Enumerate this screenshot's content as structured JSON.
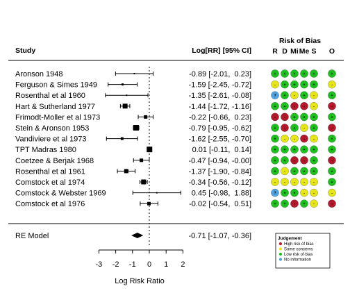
{
  "chart_data": {
    "type": "forest",
    "headers": {
      "study": "Study",
      "effect": "Log[RR] [95% CI]",
      "rob_title": "Risk of Bias",
      "rob_columns": [
        "R",
        "D",
        "Mi",
        "Me",
        "S",
        "O"
      ]
    },
    "studies": [
      {
        "name": "Aronson 1948",
        "est": -0.89,
        "lo": -2.01,
        "hi": 0.23,
        "label": "-0.89 [-2.01,  0.23]",
        "weight": 2,
        "rob": [
          "low",
          "low",
          "low",
          "low",
          "low",
          "low"
        ]
      },
      {
        "name": "Ferguson & Simes 1949",
        "est": -1.59,
        "lo": -2.45,
        "hi": -0.72,
        "label": "-1.59 [-2.45, -0.72]",
        "weight": 3,
        "rob": [
          "some",
          "low",
          "low",
          "low",
          "low",
          "some"
        ]
      },
      {
        "name": "Rosenthal et al 1960",
        "est": -1.35,
        "lo": -2.61,
        "hi": -0.08,
        "label": "-1.35 [-2.61, -0.08]",
        "weight": 2,
        "rob": [
          "none",
          "low",
          "some",
          "low",
          "some",
          "low"
        ]
      },
      {
        "name": "Hart & Sutherland 1977",
        "est": -1.44,
        "lo": -1.72,
        "hi": -1.16,
        "label": "-1.44 [-1.72, -1.16]",
        "weight": 7,
        "rob": [
          "low",
          "low",
          "high",
          "high",
          "some",
          "high"
        ]
      },
      {
        "name": "Frimodt-Moller et al 1973",
        "est": -0.22,
        "lo": -0.66,
        "hi": 0.23,
        "label": "-0.22 [-0.66,  0.23]",
        "weight": 5,
        "rob": [
          "high",
          "high",
          "low",
          "low",
          "low",
          "low"
        ]
      },
      {
        "name": "Stein & Aronson 1953",
        "est": -0.79,
        "lo": -0.95,
        "hi": -0.62,
        "label": "-0.79 [-0.95, -0.62]",
        "weight": 8,
        "rob": [
          "low",
          "high",
          "low",
          "some",
          "low",
          "high"
        ]
      },
      {
        "name": "Vandiviere et al 1973",
        "est": -1.62,
        "lo": -2.55,
        "hi": -0.7,
        "label": "-1.62 [-2.55, -0.70]",
        "weight": 4,
        "rob": [
          "low",
          "some",
          "some",
          "high",
          "some",
          "low"
        ]
      },
      {
        "name": "TPT Madras 1980",
        "est": 0.01,
        "lo": -0.11,
        "hi": 0.14,
        "label": " 0.01 [-0.11,  0.14]",
        "weight": 8,
        "rob": [
          "low",
          "low",
          "low",
          "low",
          "low",
          "low"
        ]
      },
      {
        "name": "Coetzee & Berjak 1968",
        "est": -0.47,
        "lo": -0.94,
        "hi": -0.0,
        "label": "-0.47 [-0.94, -0.00]",
        "weight": 5,
        "rob": [
          "low",
          "low",
          "high",
          "high",
          "low",
          "high"
        ]
      },
      {
        "name": "Rosenthal et al 1961",
        "est": -1.37,
        "lo": -1.9,
        "hi": -0.84,
        "label": "-1.37 [-1.90, -0.84]",
        "weight": 6,
        "rob": [
          "low",
          "some",
          "low",
          "low",
          "low",
          "low"
        ]
      },
      {
        "name": "Comstock et al 1974",
        "est": -0.34,
        "lo": -0.56,
        "hi": -0.12,
        "label": "-0.34 [-0.56, -0.12]",
        "weight": 7,
        "rob": [
          "some",
          "some",
          "some",
          "some",
          "some",
          "low"
        ]
      },
      {
        "name": "Comstock & Webster 1969",
        "est": 0.45,
        "lo": -0.98,
        "hi": 1.88,
        "label": " 0.45 [-0.98,  1.88]",
        "weight": 2,
        "rob": [
          "none",
          "low",
          "low",
          "some",
          "some",
          "some"
        ]
      },
      {
        "name": "Comstock et al 1976",
        "est": -0.02,
        "lo": -0.54,
        "hi": 0.51,
        "label": "-0.02 [-0.54,  0.51]",
        "weight": 5,
        "rob": [
          "low",
          "low",
          "high",
          "low",
          "some",
          "high"
        ]
      }
    ],
    "summary": {
      "name": "RE Model",
      "est": -0.71,
      "lo": -1.07,
      "hi": -0.36,
      "label": "-0.71 [-1.07, -0.36]"
    },
    "x_axis": {
      "label": "Log Risk Ratio",
      "ticks": [
        -3,
        -2,
        -1,
        0,
        1,
        2
      ],
      "range": [
        -3,
        2
      ],
      "reference_line": 0
    },
    "legend": {
      "title": "Judgement",
      "items": [
        {
          "key": "high",
          "label": "High risk of bias"
        },
        {
          "key": "some",
          "label": "Some concerns"
        },
        {
          "key": "low",
          "label": "Low risk of bias"
        },
        {
          "key": "none",
          "label": "No information"
        }
      ]
    },
    "judgement_colors": {
      "high": "#b2182b",
      "some": "#e5e51a",
      "low": "#1fbf1f",
      "none": "#4fa3e0"
    },
    "judgement_symbols": {
      "high": "-",
      "some": "-",
      "low": "+",
      "none": "?"
    }
  }
}
